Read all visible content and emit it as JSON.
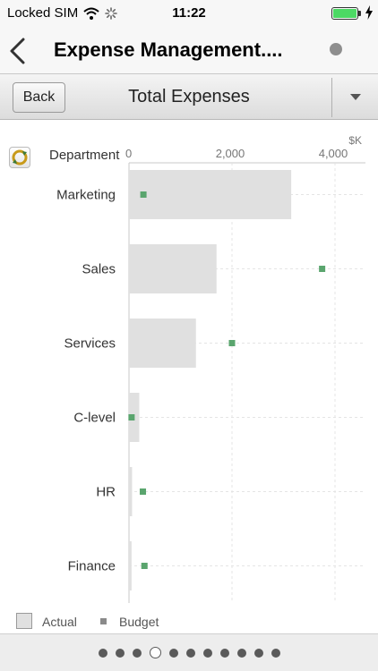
{
  "status_bar": {
    "carrier": "Locked SIM",
    "time": "11:22"
  },
  "nav": {
    "title": "Expense Management...."
  },
  "toolbar": {
    "back_label": "Back",
    "title": "Total Expenses"
  },
  "chart_header": {
    "dimension_label": "Department",
    "unit": "$K"
  },
  "legend": {
    "actual_label": "Actual",
    "budget_label": "Budget"
  },
  "colors": {
    "actual_bar": "#e0e0e0",
    "budget_marker": "#5aa56e",
    "gridline": "#e4e4e4"
  },
  "chart_data": {
    "type": "bar",
    "orientation": "horizontal",
    "categories": [
      "Marketing",
      "Sales",
      "Services",
      "C-level",
      "HR",
      "Finance"
    ],
    "series": [
      {
        "name": "Actual",
        "values": [
          3150,
          1700,
          1300,
          200,
          60,
          50
        ]
      },
      {
        "name": "Budget",
        "values": [
          280,
          3750,
          2000,
          50,
          270,
          300
        ]
      }
    ],
    "x_ticks": [
      "0",
      "2,000",
      "4,000"
    ],
    "xlim": [
      0,
      4500
    ],
    "grid": true,
    "legend": "bottom-left"
  },
  "pager": {
    "count": 11,
    "active_index": 3
  }
}
